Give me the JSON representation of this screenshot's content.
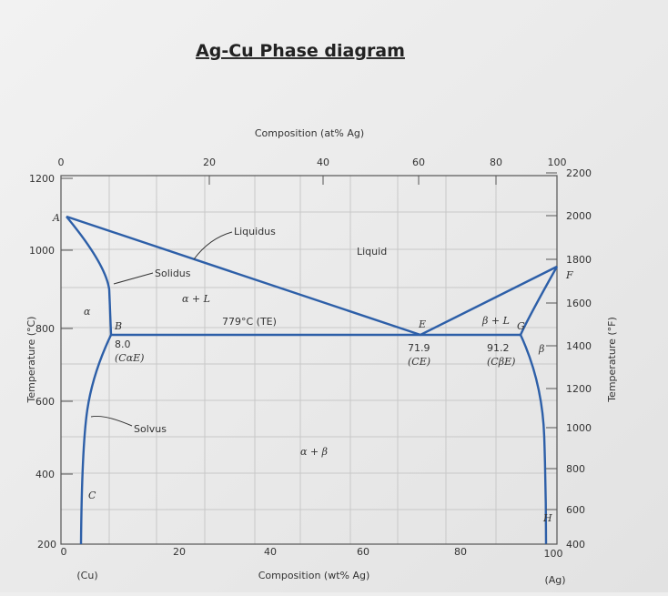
{
  "title": "Ag-Cu Phase diagram",
  "top_axis": {
    "title": "Composition (at% Ag)",
    "ticks": [
      "0",
      "20",
      "40",
      "60",
      "80",
      "100"
    ]
  },
  "bottom_axis": {
    "title": "Composition (wt% Ag)",
    "ticks": [
      "0",
      "20",
      "40",
      "60",
      "80",
      "100"
    ],
    "end_labels": [
      "(Cu)",
      "(Ag)"
    ]
  },
  "left_axis": {
    "title": "Temperature (°C)",
    "ticks": [
      "1200",
      "1000",
      "800",
      "600",
      "400",
      "200"
    ]
  },
  "right_axis": {
    "title": "Temperature (°F)",
    "ticks": [
      "2200",
      "2000",
      "1800",
      "1600",
      "1400",
      "1200",
      "1000",
      "800",
      "600",
      "400"
    ]
  },
  "points": [
    "A",
    "B",
    "C",
    "E",
    "F",
    "G",
    "H"
  ],
  "curves": [
    "Liquidus",
    "Solidus",
    "Solvus"
  ],
  "regions": [
    "Liquid",
    "α + L",
    "β + L",
    "α",
    "β",
    "α + β"
  ],
  "eutectic": {
    "temperature": "779°C (TE)",
    "compositions": [
      "8.0",
      "71.9",
      "91.2"
    ],
    "symbols": [
      "(CαE)",
      "(CE)",
      "(CβE)"
    ]
  }
}
